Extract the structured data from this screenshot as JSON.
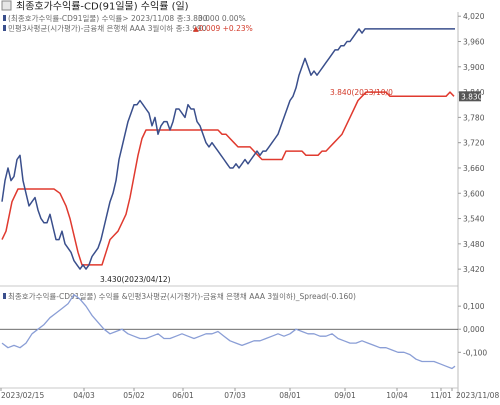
{
  "title": "최종호가수익률-CD(91일물) 수익률 (일)",
  "upper_legend": {
    "series1": "(최종호가수익률-CD91일물) 수익률> 2023/11/08 종:3.830",
    "series1_change": "0.000 0.00%",
    "series2": "민평3사평균(시가평가)-금융채 은행채 AAA 3월이하 종:3.990",
    "series2_change": "▲0.009 +0.23%"
  },
  "lower_legend": "최종호가수익률-CD91일물) 수익률 &민평3사평균(시가평가)-금융채 은행채 AAA 3월이하)_Spread(-0.160)",
  "annotations": {
    "low": "3.430(2023/04/12)",
    "mid": "3.840(2023/10/0",
    "current_tag": "3.830"
  },
  "colors": {
    "series1": "#e03a2f",
    "series2": "#3a4f8c",
    "spread": "#8a9ed6",
    "current_tag_bg": "#555555"
  },
  "chart_data": [
    {
      "type": "line",
      "title": "최종호가수익률-CD(91일물) 수익률 (일)",
      "x_tick_labels": [
        "2023/02/15",
        "04/03",
        "05/02",
        "06/01",
        "07/03",
        "08/01",
        "09/01",
        "10/04",
        "11/01",
        "2023/11/08"
      ],
      "ylim": [
        3.38,
        4.03
      ],
      "y_tick_labels": [
        "3,420",
        "3,480",
        "3,540",
        "3,600",
        "3,660",
        "3,720",
        "3,780",
        "3,840",
        "3,900",
        "3,960",
        "4,020"
      ],
      "y_ticks": [
        3.42,
        3.48,
        3.54,
        3.6,
        3.66,
        3.72,
        3.78,
        3.84,
        3.9,
        3.96,
        4.02
      ],
      "series": [
        {
          "name": "(최종호가수익률-CD91일물) 수익률",
          "x": [
            0,
            4,
            10,
            16,
            22,
            28,
            34,
            40,
            46,
            52,
            58,
            64,
            68,
            72,
            76,
            80,
            84,
            88,
            92,
            96,
            100,
            104,
            108,
            112,
            116,
            120,
            124,
            128,
            132,
            136,
            140,
            144,
            148,
            152,
            156,
            160,
            164,
            168,
            172,
            176,
            180,
            184,
            188,
            192,
            196,
            200,
            204,
            208,
            212,
            216,
            220,
            224,
            228,
            232,
            236,
            240,
            244,
            248,
            252,
            256,
            260,
            264,
            268,
            272,
            276,
            280,
            284,
            288,
            292,
            296,
            300,
            304,
            308,
            312,
            316,
            320,
            324,
            328,
            332,
            336,
            340,
            344,
            348,
            352,
            356,
            360,
            364,
            368,
            372,
            376,
            380,
            384,
            388,
            392,
            396,
            400,
            404,
            408,
            412,
            416,
            420,
            424,
            428,
            432,
            436,
            440,
            444,
            448,
            452
          ],
          "values": [
            3.49,
            3.51,
            3.58,
            3.61,
            3.61,
            3.61,
            3.61,
            3.61,
            3.61,
            3.61,
            3.6,
            3.57,
            3.54,
            3.5,
            3.46,
            3.43,
            3.43,
            3.43,
            3.43,
            3.43,
            3.43,
            3.46,
            3.49,
            3.5,
            3.51,
            3.53,
            3.55,
            3.59,
            3.64,
            3.69,
            3.73,
            3.75,
            3.75,
            3.75,
            3.75,
            3.75,
            3.75,
            3.75,
            3.75,
            3.75,
            3.75,
            3.75,
            3.75,
            3.75,
            3.75,
            3.75,
            3.75,
            3.75,
            3.75,
            3.75,
            3.74,
            3.74,
            3.73,
            3.72,
            3.71,
            3.71,
            3.71,
            3.71,
            3.7,
            3.69,
            3.68,
            3.68,
            3.68,
            3.68,
            3.68,
            3.68,
            3.7,
            3.7,
            3.7,
            3.7,
            3.7,
            3.69,
            3.69,
            3.69,
            3.69,
            3.7,
            3.7,
            3.71,
            3.72,
            3.73,
            3.74,
            3.76,
            3.78,
            3.8,
            3.82,
            3.83,
            3.84,
            3.84,
            3.84,
            3.84,
            3.84,
            3.84,
            3.83,
            3.83,
            3.83,
            3.83,
            3.83,
            3.83,
            3.83,
            3.83,
            3.83,
            3.83,
            3.83,
            3.83,
            3.83,
            3.83,
            3.83,
            3.84,
            3.83
          ]
        },
        {
          "name": "민평3사평균(시가평가)-금융채 은행채 AAA 3월이하",
          "x": [
            0,
            3,
            6,
            9,
            12,
            15,
            18,
            21,
            24,
            27,
            30,
            33,
            36,
            39,
            42,
            45,
            48,
            51,
            54,
            57,
            60,
            63,
            66,
            69,
            72,
            75,
            78,
            81,
            84,
            87,
            90,
            93,
            96,
            99,
            102,
            105,
            108,
            111,
            114,
            117,
            120,
            123,
            126,
            129,
            132,
            135,
            138,
            141,
            144,
            147,
            150,
            153,
            156,
            159,
            162,
            165,
            168,
            171,
            174,
            177,
            180,
            183,
            186,
            189,
            192,
            195,
            198,
            201,
            204,
            207,
            210,
            213,
            216,
            219,
            222,
            225,
            228,
            231,
            234,
            237,
            240,
            243,
            246,
            249,
            252,
            255,
            258,
            261,
            264,
            267,
            270,
            273,
            276,
            279,
            282,
            285,
            288,
            291,
            294,
            297,
            300,
            303,
            306,
            309,
            312,
            315,
            318,
            321,
            324,
            327,
            330,
            333,
            336,
            339,
            342,
            345,
            348,
            351,
            354,
            357,
            360,
            363,
            366,
            369,
            372,
            375,
            378,
            381,
            384,
            387,
            390,
            393,
            396,
            399,
            402,
            405,
            408,
            411,
            414,
            417,
            420,
            423,
            426,
            429,
            432,
            435,
            438,
            441,
            444,
            447,
            450,
            453
          ],
          "values": [
            3.58,
            3.63,
            3.66,
            3.63,
            3.64,
            3.68,
            3.69,
            3.63,
            3.6,
            3.57,
            3.58,
            3.59,
            3.56,
            3.54,
            3.53,
            3.53,
            3.55,
            3.52,
            3.49,
            3.49,
            3.51,
            3.48,
            3.47,
            3.46,
            3.44,
            3.43,
            3.42,
            3.43,
            3.42,
            3.43,
            3.45,
            3.46,
            3.47,
            3.49,
            3.52,
            3.55,
            3.58,
            3.6,
            3.63,
            3.68,
            3.71,
            3.74,
            3.77,
            3.79,
            3.81,
            3.81,
            3.82,
            3.81,
            3.8,
            3.79,
            3.76,
            3.78,
            3.74,
            3.76,
            3.77,
            3.77,
            3.75,
            3.77,
            3.8,
            3.8,
            3.79,
            3.78,
            3.81,
            3.8,
            3.8,
            3.77,
            3.76,
            3.74,
            3.72,
            3.71,
            3.72,
            3.71,
            3.7,
            3.69,
            3.68,
            3.67,
            3.66,
            3.66,
            3.67,
            3.66,
            3.67,
            3.68,
            3.67,
            3.68,
            3.69,
            3.7,
            3.69,
            3.7,
            3.7,
            3.71,
            3.72,
            3.73,
            3.74,
            3.76,
            3.78,
            3.8,
            3.82,
            3.83,
            3.85,
            3.88,
            3.9,
            3.92,
            3.9,
            3.88,
            3.89,
            3.88,
            3.89,
            3.9,
            3.91,
            3.92,
            3.93,
            3.94,
            3.94,
            3.95,
            3.95,
            3.96,
            3.96,
            3.97,
            3.98,
            3.99,
            3.98,
            3.99,
            3.99,
            3.99,
            3.99,
            3.99,
            3.99,
            3.99,
            3.99,
            3.99,
            3.99,
            3.99,
            3.99,
            3.99,
            3.99,
            3.99,
            3.99,
            3.99,
            3.99,
            3.99,
            3.99,
            3.99,
            3.99,
            3.99,
            3.99,
            3.99,
            3.99,
            3.99,
            3.99,
            3.99,
            3.99,
            3.99
          ]
        }
      ]
    },
    {
      "type": "area",
      "title": "최종호가수익률-CD91일물) 수익률 &민평3사평균(시가평가)-금융채 은행채 AAA 3월이하)_Spread(-0.160)",
      "ylim": [
        -0.22,
        0.17
      ],
      "y_tick_labels": [
        "0,100",
        "0,000",
        "-0,100"
      ],
      "y_ticks": [
        0.1,
        0.0,
        -0.1
      ],
      "series": [
        {
          "name": "Spread",
          "x": [
            0,
            6,
            12,
            18,
            24,
            30,
            36,
            42,
            48,
            54,
            60,
            66,
            72,
            78,
            84,
            90,
            96,
            102,
            108,
            114,
            120,
            126,
            132,
            138,
            144,
            150,
            156,
            162,
            168,
            174,
            180,
            186,
            192,
            198,
            204,
            210,
            216,
            222,
            228,
            234,
            240,
            246,
            252,
            258,
            264,
            270,
            276,
            282,
            288,
            294,
            300,
            306,
            312,
            318,
            324,
            330,
            336,
            342,
            348,
            354,
            360,
            366,
            372,
            378,
            384,
            390,
            396,
            402,
            408,
            414,
            420,
            426,
            432,
            438,
            444,
            450,
            453
          ],
          "values": [
            -0.06,
            -0.08,
            -0.07,
            -0.08,
            -0.06,
            -0.02,
            0.0,
            0.02,
            0.05,
            0.07,
            0.09,
            0.11,
            0.15,
            0.13,
            0.1,
            0.06,
            0.03,
            0.0,
            -0.02,
            -0.01,
            0.0,
            -0.02,
            -0.03,
            -0.04,
            -0.04,
            -0.03,
            -0.02,
            -0.04,
            -0.04,
            -0.03,
            -0.02,
            -0.03,
            -0.04,
            -0.03,
            -0.02,
            -0.02,
            -0.01,
            -0.03,
            -0.05,
            -0.06,
            -0.07,
            -0.06,
            -0.05,
            -0.05,
            -0.04,
            -0.03,
            -0.02,
            -0.03,
            -0.02,
            0.0,
            -0.01,
            -0.02,
            -0.02,
            -0.03,
            -0.03,
            -0.02,
            -0.04,
            -0.05,
            -0.06,
            -0.06,
            -0.05,
            -0.06,
            -0.07,
            -0.08,
            -0.08,
            -0.09,
            -0.1,
            -0.1,
            -0.11,
            -0.13,
            -0.14,
            -0.14,
            -0.14,
            -0.15,
            -0.16,
            -0.17,
            -0.16
          ]
        }
      ]
    }
  ]
}
